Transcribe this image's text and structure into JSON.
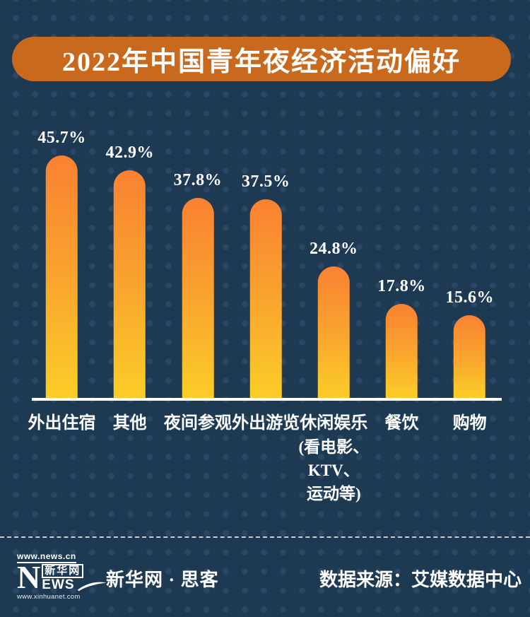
{
  "header": {
    "title": "2022年中国青年夜经济活动偏好"
  },
  "chart_data": {
    "type": "bar",
    "title": "2022年中国青年夜经济活动偏好",
    "categories": [
      "外出住宿",
      "其他",
      "夜间参观",
      "外出游览",
      "休闲娱乐",
      "餐饮",
      "购物"
    ],
    "category_sublines": [
      [],
      [],
      [],
      [],
      [
        "(看电影、",
        "KTV、",
        "运动等)"
      ],
      [],
      []
    ],
    "values": [
      45.7,
      42.9,
      37.8,
      37.5,
      24.8,
      17.8,
      15.6
    ],
    "value_labels": [
      "45.7%",
      "42.9%",
      "37.8%",
      "37.5%",
      "24.8%",
      "17.8%",
      "15.6%"
    ],
    "unit": "%",
    "xlabel": "",
    "ylabel": "",
    "ylim": [
      0,
      50
    ],
    "grid": false,
    "legend": false,
    "bar_gradient_top": "#fa8132",
    "bar_gradient_bottom": "#fbcd28",
    "baseline_color": "#ffffff"
  },
  "footer": {
    "logo": {
      "top_url": "www.news.cn",
      "n_letter": "N",
      "cn_text": "新华网",
      "ews_text": "EWS",
      "bottom_url": "www.xinhuanet.com"
    },
    "brand": "新华网 · 思客",
    "source": "数据来源：艾媒数据中心"
  },
  "colors": {
    "background": "#1d3a52",
    "dot_pattern": "#2b4765",
    "title_pill": "#c8691e",
    "text": "#ffffff"
  }
}
